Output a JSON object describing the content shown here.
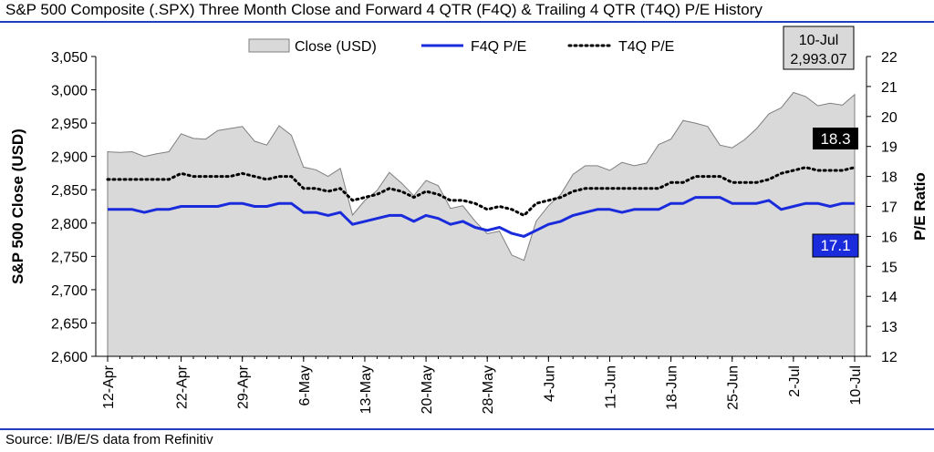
{
  "header": {
    "title": "S&P 500 Composite (.SPX) Three Month Close and Forward 4 QTR (F4Q) & Trailing 4 QTR (T4Q) P/E History"
  },
  "footer": {
    "source": "Source: I/B/E/S data from Refinitiv"
  },
  "colors": {
    "close_fill": "#d9d9d9",
    "close_stroke": "#7f7f7f",
    "f4q_line": "#1a2bdc",
    "t4q_line": "#000000",
    "f4q_badge": "#1a2bdc",
    "t4q_badge": "#000000",
    "date_box": "#d9d9d9",
    "rule": "#1f3fbf"
  },
  "chart_data": {
    "type": "area",
    "title": "",
    "ylabel": "S&P 500 Close (USD)",
    "y2label": "P/E Ratio",
    "ylim": [
      2600,
      3050
    ],
    "y2lim": [
      12,
      22
    ],
    "yticks": [
      "2,600",
      "2,650",
      "2,700",
      "2,750",
      "2,800",
      "2,850",
      "2,900",
      "2,950",
      "3,000",
      "3,050"
    ],
    "y2ticks": [
      "12",
      "13",
      "14",
      "15",
      "16",
      "17",
      "18",
      "19",
      "20",
      "21",
      "22"
    ],
    "xticklabels": [
      "12-Apr",
      "22-Apr",
      "29-Apr",
      "6-May",
      "13-May",
      "20-May",
      "28-May",
      "4-Jun",
      "11-Jun",
      "18-Jun",
      "25-Jun",
      "2-Jul",
      "10-Jul"
    ],
    "xtick_positions": [
      0,
      6,
      11,
      16,
      21,
      26,
      31,
      36,
      41,
      46,
      51,
      56,
      61
    ],
    "legend": [
      "Close (USD)",
      "F4Q P/E",
      "T4Q P/E"
    ],
    "legend_position": "top",
    "grid": false,
    "callout": {
      "date": "10-Jul",
      "value": "2,993.07"
    },
    "end_labels": {
      "t4q": "18.3",
      "f4q": "17.1"
    },
    "series": [
      {
        "name": "Close (USD)",
        "axis": "left",
        "values": [
          2907,
          2906,
          2907,
          2900,
          2904,
          2907,
          2934,
          2927,
          2926,
          2939,
          2942,
          2945,
          2923,
          2917,
          2946,
          2932,
          2884,
          2880,
          2870,
          2882,
          2812,
          2834,
          2849,
          2876,
          2860,
          2841,
          2864,
          2856,
          2822,
          2826,
          2803,
          2784,
          2788,
          2752,
          2744,
          2803,
          2826,
          2843,
          2873,
          2886,
          2886,
          2879,
          2891,
          2886,
          2890,
          2918,
          2926,
          2954,
          2950,
          2945,
          2917,
          2913,
          2925,
          2942,
          2964,
          2973,
          2996,
          2990,
          2976,
          2980,
          2977,
          2993
        ]
      },
      {
        "name": "F4Q P/E",
        "axis": "right",
        "values": [
          16.9,
          16.9,
          16.9,
          16.8,
          16.9,
          16.9,
          17.0,
          17.0,
          17.0,
          17.0,
          17.1,
          17.1,
          17.0,
          17.0,
          17.1,
          17.1,
          16.8,
          16.8,
          16.7,
          16.8,
          16.4,
          16.5,
          16.6,
          16.7,
          16.7,
          16.5,
          16.7,
          16.6,
          16.4,
          16.5,
          16.3,
          16.2,
          16.3,
          16.1,
          16.0,
          16.2,
          16.4,
          16.5,
          16.7,
          16.8,
          16.9,
          16.9,
          16.8,
          16.9,
          16.9,
          16.9,
          17.1,
          17.1,
          17.3,
          17.3,
          17.3,
          17.1,
          17.1,
          17.1,
          17.2,
          16.9,
          17.0,
          17.1,
          17.1,
          17.0,
          17.1,
          17.1
        ]
      },
      {
        "name": "T4Q P/E",
        "axis": "right",
        "values": [
          17.9,
          17.9,
          17.9,
          17.9,
          17.9,
          17.9,
          18.1,
          18.0,
          18.0,
          18.0,
          18.0,
          18.1,
          18.0,
          17.9,
          18.0,
          18.0,
          17.6,
          17.6,
          17.5,
          17.6,
          17.2,
          17.3,
          17.4,
          17.6,
          17.5,
          17.3,
          17.5,
          17.4,
          17.2,
          17.2,
          17.1,
          16.9,
          17.0,
          16.9,
          16.7,
          17.1,
          17.2,
          17.3,
          17.5,
          17.6,
          17.6,
          17.6,
          17.6,
          17.6,
          17.6,
          17.6,
          17.8,
          17.8,
          18.0,
          18.0,
          18.0,
          17.8,
          17.8,
          17.8,
          17.9,
          18.1,
          18.2,
          18.3,
          18.2,
          18.2,
          18.2,
          18.3
        ]
      }
    ]
  }
}
